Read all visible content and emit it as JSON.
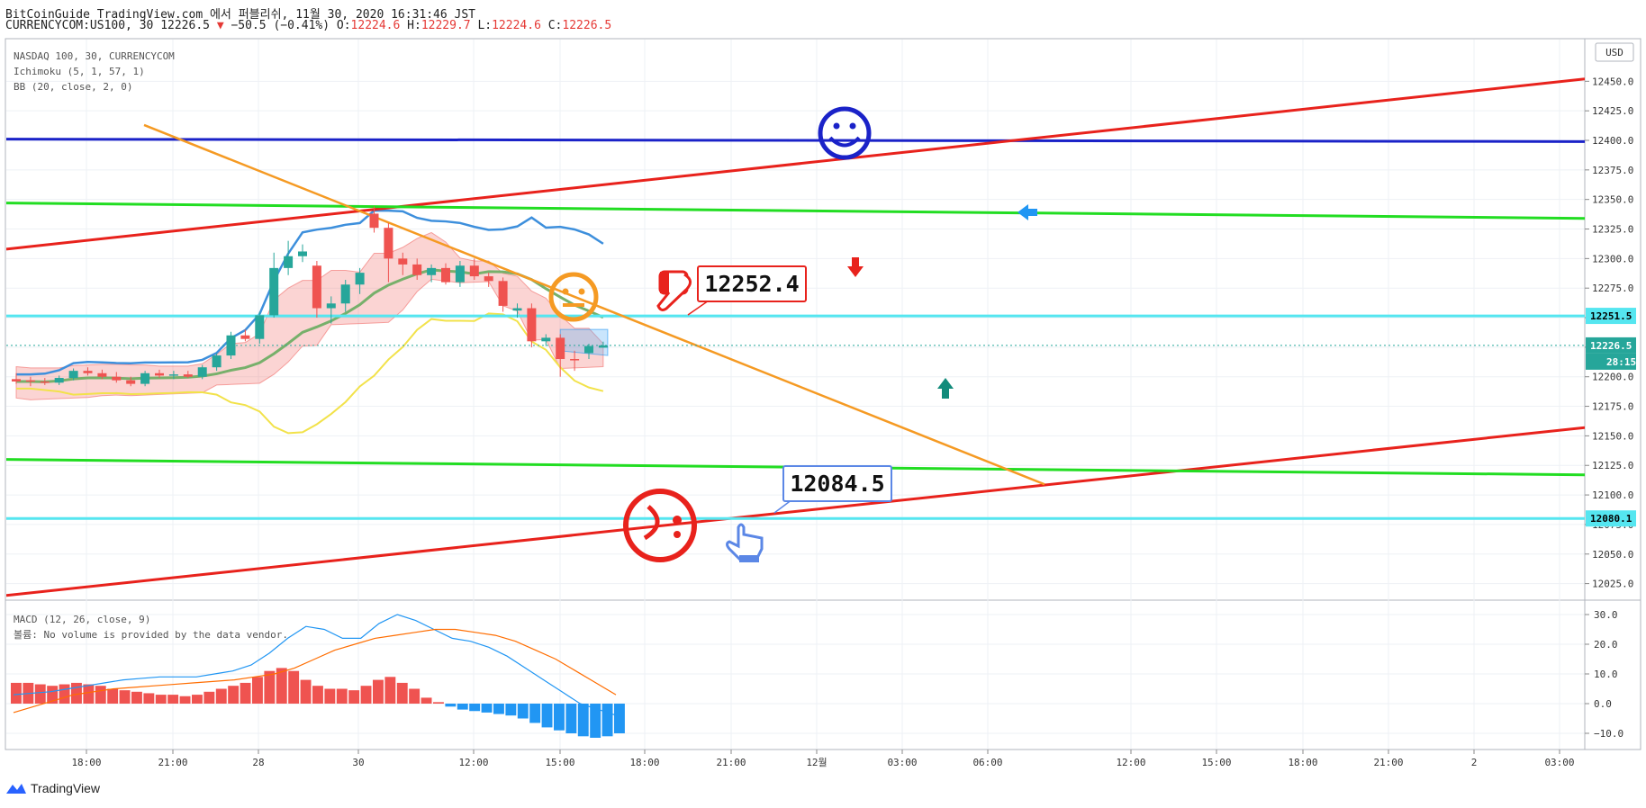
{
  "header": {
    "line1": "BitCoinGuide TradingView.com 에서 퍼블리쉬, 11월 30, 2020 16:31:46 JST",
    "symbol": "CURRENCYCOM:US100, 30",
    "last": "12226.5",
    "change": "−50.5 (−0.41%)",
    "o_label": "O:",
    "o_val": "12224.6",
    "h_label": "H:",
    "h_val": "12229.7",
    "l_label": "L:",
    "l_val": "12224.6",
    "c_label": "C:",
    "c_val": "12226.5"
  },
  "legend": {
    "line1": "NASDAQ 100, 30, CURRENCYCOM",
    "line2": "Ichimoku (5, 1, 57, 1)",
    "line3": "BB (20, close, 2, 0)"
  },
  "macd_legend": {
    "line1": "MACD (12, 26, close, 9)",
    "line2": "볼륨: No volume is provided by the data vendor."
  },
  "currency_button": "USD",
  "footer_brand": "TradingView",
  "colors": {
    "up": "#26a69a",
    "down": "#ef5350",
    "red_line": "#e8221c",
    "green_line": "#22dd22",
    "blue_line": "#1a22c8",
    "cyan_line": "#55e6f0",
    "orange_line": "#f59a23",
    "bb_upper": "#3d8fdc",
    "bb_lower": "#f2e24a",
    "bb_mid": "#77b06b",
    "macd_line": "#2196f3",
    "signal_line": "#ff6d00"
  },
  "chart_data": [
    {
      "type": "candlestick",
      "title": "NASDAQ 100, 30, CURRENCYCOM",
      "y_axis_labels": [
        "12450.0",
        "12425.0",
        "12400.0",
        "12375.0",
        "12350.0",
        "12325.0",
        "12300.0",
        "12275.0",
        "12250.0",
        "12225.0",
        "12200.0",
        "12175.0",
        "12150.0",
        "12125.0",
        "12100.0",
        "12075.0",
        "12050.0",
        "12025.0"
      ],
      "ylim": [
        12010,
        12480
      ],
      "x_tick_labels": [
        "18:00",
        "21:00",
        "28",
        "30",
        "12:00",
        "15:00",
        "18:00",
        "21:00",
        "12월",
        "03:00",
        "06:00",
        "12:00",
        "15:00",
        "18:00",
        "21:00",
        "2",
        "03:00"
      ],
      "candles": [
        {
          "o": 12198,
          "h": 12203,
          "l": 12194,
          "c": 12196
        },
        {
          "o": 12197,
          "h": 12200,
          "l": 12192,
          "c": 12196
        },
        {
          "o": 12196,
          "h": 12199,
          "l": 12193,
          "c": 12195
        },
        {
          "o": 12195,
          "h": 12201,
          "l": 12193,
          "c": 12199
        },
        {
          "o": 12199,
          "h": 12207,
          "l": 12197,
          "c": 12205
        },
        {
          "o": 12205,
          "h": 12208,
          "l": 12201,
          "c": 12203
        },
        {
          "o": 12203,
          "h": 12206,
          "l": 12198,
          "c": 12200
        },
        {
          "o": 12200,
          "h": 12204,
          "l": 12195,
          "c": 12197
        },
        {
          "o": 12197,
          "h": 12200,
          "l": 12192,
          "c": 12194
        },
        {
          "o": 12194,
          "h": 12205,
          "l": 12192,
          "c": 12203
        },
        {
          "o": 12203,
          "h": 12206,
          "l": 12199,
          "c": 12201
        },
        {
          "o": 12201,
          "h": 12205,
          "l": 12198,
          "c": 12202
        },
        {
          "o": 12202,
          "h": 12205,
          "l": 12199,
          "c": 12200
        },
        {
          "o": 12200,
          "h": 12210,
          "l": 12198,
          "c": 12208
        },
        {
          "o": 12208,
          "h": 12220,
          "l": 12205,
          "c": 12218
        },
        {
          "o": 12218,
          "h": 12238,
          "l": 12215,
          "c": 12235
        },
        {
          "o": 12235,
          "h": 12240,
          "l": 12230,
          "c": 12232
        },
        {
          "o": 12232,
          "h": 12255,
          "l": 12228,
          "c": 12252
        },
        {
          "o": 12252,
          "h": 12305,
          "l": 12250,
          "c": 12292
        },
        {
          "o": 12292,
          "h": 12315,
          "l": 12286,
          "c": 12302
        },
        {
          "o": 12302,
          "h": 12312,
          "l": 12297,
          "c": 12306
        },
        {
          "o": 12294,
          "h": 12298,
          "l": 12250,
          "c": 12258
        },
        {
          "o": 12258,
          "h": 12268,
          "l": 12245,
          "c": 12262
        },
        {
          "o": 12262,
          "h": 12282,
          "l": 12255,
          "c": 12278
        },
        {
          "o": 12278,
          "h": 12292,
          "l": 12270,
          "c": 12288
        },
        {
          "o": 12338,
          "h": 12344,
          "l": 12322,
          "c": 12326
        },
        {
          "o": 12326,
          "h": 12330,
          "l": 12280,
          "c": 12300
        },
        {
          "o": 12300,
          "h": 12305,
          "l": 12286,
          "c": 12295
        },
        {
          "o": 12295,
          "h": 12300,
          "l": 12282,
          "c": 12286
        },
        {
          "o": 12286,
          "h": 12295,
          "l": 12280,
          "c": 12292
        },
        {
          "o": 12292,
          "h": 12296,
          "l": 12278,
          "c": 12280
        },
        {
          "o": 12280,
          "h": 12298,
          "l": 12276,
          "c": 12294
        },
        {
          "o": 12294,
          "h": 12300,
          "l": 12282,
          "c": 12285
        },
        {
          "o": 12285,
          "h": 12288,
          "l": 12276,
          "c": 12281
        },
        {
          "o": 12281,
          "h": 12284,
          "l": 12255,
          "c": 12260
        },
        {
          "o": 12256,
          "h": 12262,
          "l": 12250,
          "c": 12258
        },
        {
          "o": 12258,
          "h": 12262,
          "l": 12225,
          "c": 12230
        },
        {
          "o": 12230,
          "h": 12236,
          "l": 12226,
          "c": 12233
        },
        {
          "o": 12233,
          "h": 12236,
          "l": 12200,
          "c": 12215
        },
        {
          "o": 12215,
          "h": 12222,
          "l": 12205,
          "c": 12214
        },
        {
          "o": 12220,
          "h": 12228,
          "l": 12215,
          "c": 12226
        },
        {
          "o": 12224.6,
          "h": 12229.7,
          "l": 12224.6,
          "c": 12226.5
        }
      ],
      "price_labels": [
        {
          "value": 12251.5,
          "text": "12251.5",
          "color": "#55e6f0"
        },
        {
          "value": 12226.5,
          "text": "12226.5",
          "color": "#26a69a"
        },
        {
          "value": 12080.1,
          "text": "12080.1",
          "color": "#55e6f0"
        }
      ],
      "countdown": "28:15",
      "annotations": [
        "12252.4",
        "12084.5"
      ]
    },
    {
      "type": "bar",
      "title": "MACD (12, 26, close, 9)",
      "y_axis_labels": [
        "30.0",
        "20.0",
        "10.0",
        "0.0",
        "−10.0"
      ],
      "ylim": [
        -14,
        34
      ],
      "histogram": [
        7,
        7,
        6.5,
        6,
        6.5,
        7,
        6.5,
        6,
        5,
        4.5,
        4,
        3.5,
        3,
        3,
        2.5,
        3,
        4,
        5,
        6,
        7,
        9,
        11,
        12,
        11,
        8,
        6,
        5,
        5,
        4.5,
        6,
        8,
        9,
        7,
        5,
        2,
        0.5,
        -1,
        -2,
        -2.5,
        -3,
        -3.5,
        -4,
        -5,
        -6.5,
        -8,
        -9,
        -10,
        -11,
        -11.5,
        -11,
        -10
      ],
      "macd_line": [
        3,
        3.5,
        4,
        5,
        6,
        7,
        8,
        8.5,
        9,
        9,
        9,
        10,
        11,
        13,
        17,
        22,
        26,
        25,
        22,
        22,
        27,
        30,
        28,
        25,
        22,
        21,
        19,
        16,
        12,
        8,
        4,
        0,
        -2,
        -4
      ],
      "signal_line": [
        -3,
        -1,
        1,
        3,
        4,
        5,
        5.5,
        6,
        6.5,
        7,
        7.5,
        8,
        9,
        10,
        12,
        15,
        18,
        20,
        22,
        23,
        24,
        25,
        25,
        24,
        23,
        21,
        18,
        15,
        11,
        7,
        3
      ]
    }
  ]
}
